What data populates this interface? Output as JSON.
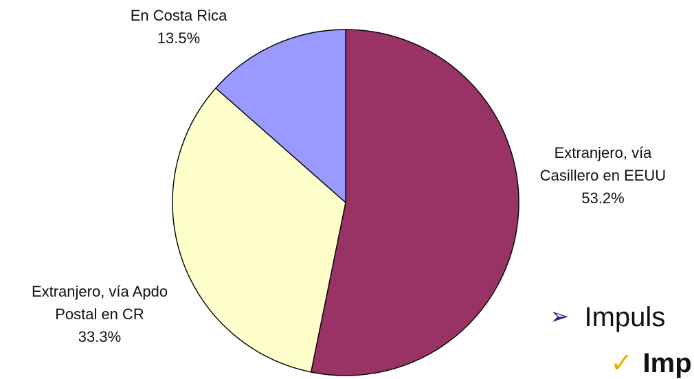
{
  "chart_data": {
    "type": "pie",
    "slices": [
      {
        "label": "Extranjero, vía Casillero en EEUU",
        "value": 53.2,
        "color": "#993366"
      },
      {
        "label": "Extranjero, vía Apdo Postal en CR",
        "value": 33.3,
        "color": "#ffffcc"
      },
      {
        "label": "En Costa Rica",
        "value": 13.5,
        "color": "#9999ff"
      }
    ]
  },
  "labels": {
    "casillero": {
      "line1": "Extranjero, vía",
      "line2": "Casillero en EEUU",
      "pct": "53.2%"
    },
    "apdo": {
      "line1": "Extranjero, vía Apdo",
      "line2": "Postal en CR",
      "pct": "33.3%"
    },
    "costa_rica": {
      "line1": "En Costa Rica",
      "pct": "13.5%"
    }
  },
  "bullets": {
    "arrow_glyph": "➢",
    "main_text": "Impuls",
    "check_glyph": "✓",
    "sub_text": "Imp"
  }
}
